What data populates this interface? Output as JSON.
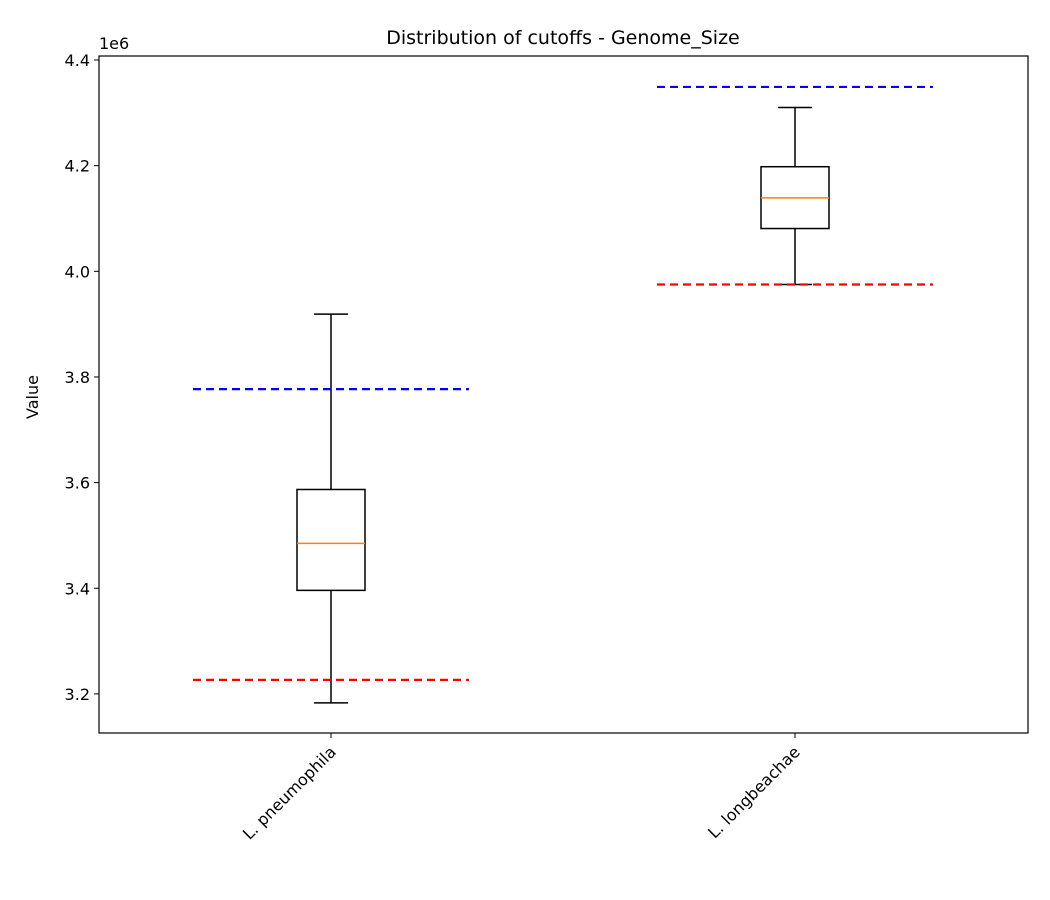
{
  "chart_data": {
    "type": "box",
    "title": "Distribution of cutoffs - Genome_Size",
    "y_label": "Value",
    "y_offset_label": "1e6",
    "categories": [
      "L. pneumophila",
      "L. longbeachae"
    ],
    "boxes": [
      {
        "min": 3183000,
        "q1": 3396000,
        "median": 3485000,
        "q3": 3587000,
        "max": 3919000
      },
      {
        "min": 3975000,
        "q1": 4081000,
        "median": 4139000,
        "q3": 4198000,
        "max": 4310000
      }
    ],
    "box_color": "#000000",
    "median_color": "#ff7f0e",
    "upper_cutoffs": {
      "color": "#0000ff",
      "values": [
        3777000,
        4349000
      ]
    },
    "lower_cutoffs": {
      "color": "#ff0000",
      "values": [
        3226500,
        3975000
      ]
    },
    "ylim": [
      3126000,
      4407600
    ],
    "yticks": [
      {
        "value": 3200000,
        "label": "3.2"
      },
      {
        "value": 3400000,
        "label": "3.4"
      },
      {
        "value": 3600000,
        "label": "3.6"
      },
      {
        "value": 3800000,
        "label": "3.8"
      },
      {
        "value": 4000000,
        "label": "4.0"
      },
      {
        "value": 4200000,
        "label": "4.2"
      },
      {
        "value": 4400000,
        "label": "4.4"
      }
    ]
  }
}
